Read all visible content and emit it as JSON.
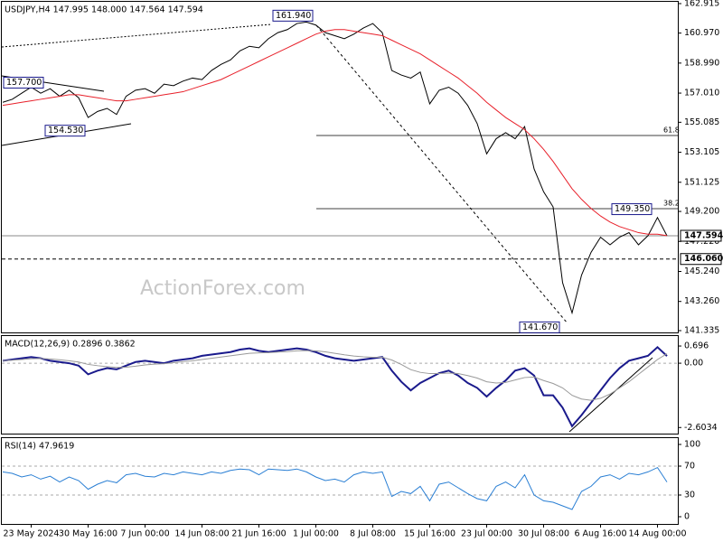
{
  "chart_data": [
    {
      "type": "line",
      "title": "USDJPY,H4 147.995 148.000 147.564 147.594",
      "watermark": "ActionForex.com",
      "series": [
        {
          "name": "price",
          "color": "#000000",
          "values": [
            156.4,
            156.6,
            157.0,
            157.4,
            157.0,
            157.3,
            156.8,
            157.2,
            156.7,
            155.4,
            155.8,
            156.0,
            155.6,
            156.8,
            157.2,
            157.3,
            157.0,
            157.6,
            157.5,
            157.8,
            158.0,
            157.9,
            158.5,
            158.9,
            159.2,
            159.8,
            160.1,
            160.0,
            160.6,
            161.0,
            161.2,
            161.6,
            161.7,
            161.5,
            161.0,
            160.8,
            160.6,
            160.9,
            161.3,
            161.6,
            161.0,
            158.5,
            158.2,
            158.0,
            158.4,
            156.3,
            157.2,
            157.4,
            157.0,
            156.2,
            155.0,
            153.0,
            154.0,
            154.4,
            154.0,
            154.8,
            152.0,
            150.5,
            149.5,
            144.5,
            142.5,
            145.0,
            146.5,
            147.5,
            147.0,
            147.5,
            147.8,
            147.0,
            147.6,
            148.8,
            147.594
          ]
        },
        {
          "name": "moving-average",
          "color": "#e8202a",
          "values": [
            156.2,
            156.3,
            156.4,
            156.5,
            156.6,
            156.7,
            156.8,
            156.9,
            156.9,
            156.8,
            156.7,
            156.6,
            156.5,
            156.5,
            156.6,
            156.7,
            156.8,
            156.9,
            157.0,
            157.1,
            157.3,
            157.5,
            157.7,
            157.9,
            158.2,
            158.5,
            158.8,
            159.1,
            159.4,
            159.7,
            160.0,
            160.3,
            160.6,
            160.9,
            161.1,
            161.2,
            161.2,
            161.1,
            161.0,
            160.9,
            160.8,
            160.5,
            160.2,
            159.9,
            159.6,
            159.2,
            158.8,
            158.4,
            158.0,
            157.5,
            157.0,
            156.4,
            155.9,
            155.4,
            155.0,
            154.6,
            154.0,
            153.3,
            152.5,
            151.6,
            150.7,
            150.0,
            149.4,
            148.9,
            148.5,
            148.2,
            148.0,
            147.8,
            147.7,
            147.7,
            147.6
          ]
        }
      ],
      "ylim": [
        141.335,
        162.915
      ],
      "yticks": [
        162.915,
        {
          "value": 160.97,
          "label": "160.970"
        },
        {
          "value": 158.99,
          "label": "158.990"
        },
        {
          "value": 157.01,
          "label": "157.010"
        },
        155.085,
        153.105,
        151.125,
        {
          "value": 149.2,
          "label": "149.200"
        },
        {
          "value": 147.22,
          "label": "147.220"
        },
        {
          "value": 145.24,
          "label": "145.240"
        },
        {
          "value": 143.26,
          "label": "143.260"
        },
        141.335
      ],
      "levels": [
        {
          "value": 147.594,
          "label": "147.594"
        },
        {
          "value": 146.06,
          "label": "146.060"
        }
      ],
      "fib_labels": [
        "61.8",
        "38.2"
      ],
      "annotations": [
        {
          "value": 161.94,
          "label": "161.940"
        },
        {
          "value": 157.7,
          "label": "157.700"
        },
        {
          "value": 154.53,
          "label": "154.530"
        },
        {
          "value": 141.67,
          "label": "141.670"
        },
        {
          "value": 149.35,
          "label": "149.350"
        }
      ]
    },
    {
      "type": "line",
      "title": "MACD(12,26,9) 0.2896 0.3862",
      "series": [
        {
          "name": "macd",
          "color": "#1a1a8c",
          "values": [
            0.1,
            0.15,
            0.2,
            0.25,
            0.2,
            0.1,
            0.05,
            0.0,
            -0.1,
            -0.45,
            -0.3,
            -0.2,
            -0.25,
            -0.1,
            0.05,
            0.1,
            0.05,
            0.0,
            0.1,
            0.15,
            0.2,
            0.3,
            0.35,
            0.4,
            0.45,
            0.55,
            0.6,
            0.5,
            0.45,
            0.5,
            0.55,
            0.6,
            0.55,
            0.45,
            0.3,
            0.2,
            0.15,
            0.1,
            0.15,
            0.2,
            0.25,
            -0.3,
            -0.75,
            -1.1,
            -0.8,
            -0.6,
            -0.4,
            -0.3,
            -0.5,
            -0.8,
            -1.0,
            -1.35,
            -1.0,
            -0.7,
            -0.3,
            -0.2,
            -0.5,
            -1.3,
            -1.3,
            -1.8,
            -2.55,
            -2.1,
            -1.6,
            -1.1,
            -0.6,
            -0.2,
            0.1,
            0.2,
            0.3,
            0.65,
            0.2896
          ]
        },
        {
          "name": "signal",
          "color": "#999999",
          "values": [
            0.1,
            0.12,
            0.15,
            0.18,
            0.19,
            0.17,
            0.14,
            0.1,
            0.05,
            -0.05,
            -0.1,
            -0.14,
            -0.17,
            -0.16,
            -0.12,
            -0.07,
            -0.04,
            -0.02,
            0.02,
            0.06,
            0.1,
            0.15,
            0.2,
            0.25,
            0.3,
            0.35,
            0.4,
            0.42,
            0.43,
            0.45,
            0.47,
            0.5,
            0.51,
            0.5,
            0.46,
            0.4,
            0.34,
            0.29,
            0.26,
            0.24,
            0.24,
            0.13,
            -0.05,
            -0.26,
            -0.37,
            -0.42,
            -0.42,
            -0.4,
            -0.42,
            -0.5,
            -0.6,
            -0.75,
            -0.8,
            -0.78,
            -0.68,
            -0.58,
            -0.56,
            -0.7,
            -0.82,
            -1.0,
            -1.3,
            -1.45,
            -1.5,
            -1.42,
            -1.25,
            -1.0,
            -0.75,
            -0.45,
            -0.15,
            0.15,
            0.3862
          ]
        }
      ],
      "ylim": [
        -2.85,
        1.1
      ],
      "yticks": [
        0.696,
        {
          "value": 0,
          "label": "0.00"
        },
        -2.6034
      ]
    },
    {
      "type": "line",
      "title": "RSI(14) 47.9619",
      "categories": [
        null,
        null,
        null,
        "23 May 2024",
        null,
        null,
        null,
        null,
        null,
        "30 May 16:00",
        null,
        null,
        null,
        null,
        null,
        "7 Jun 00:00",
        null,
        null,
        null,
        null,
        null,
        "14 Jun 08:00",
        null,
        null,
        null,
        null,
        null,
        "21 Jun 16:00",
        null,
        null,
        null,
        null,
        null,
        "1 Jul 00:00",
        null,
        null,
        null,
        null,
        null,
        "8 Jul 08:00",
        null,
        null,
        null,
        null,
        null,
        "15 Jul 16:00",
        null,
        null,
        null,
        null,
        null,
        "23 Jul 00:00",
        null,
        null,
        null,
        null,
        null,
        "30 Jul 08:00",
        null,
        null,
        null,
        null,
        null,
        "6 Aug 16:00",
        null,
        null,
        null,
        null,
        null,
        "14 Aug 00:00",
        null
      ],
      "series": [
        {
          "name": "rsi",
          "color": "#2a7fd4",
          "values": [
            62,
            60,
            55,
            58,
            52,
            56,
            48,
            55,
            50,
            38,
            45,
            50,
            47,
            58,
            60,
            56,
            55,
            60,
            58,
            62,
            60,
            58,
            62,
            60,
            64,
            66,
            65,
            58,
            66,
            65,
            64,
            66,
            62,
            55,
            50,
            52,
            48,
            58,
            62,
            60,
            62,
            28,
            35,
            32,
            42,
            22,
            45,
            48,
            40,
            32,
            25,
            22,
            42,
            48,
            40,
            58,
            30,
            22,
            20,
            15,
            10,
            35,
            42,
            55,
            58,
            52,
            60,
            58,
            62,
            68,
            47.9619
          ]
        }
      ],
      "ylim": [
        0,
        100
      ],
      "yticks": [
        100,
        70,
        30,
        0
      ]
    }
  ]
}
